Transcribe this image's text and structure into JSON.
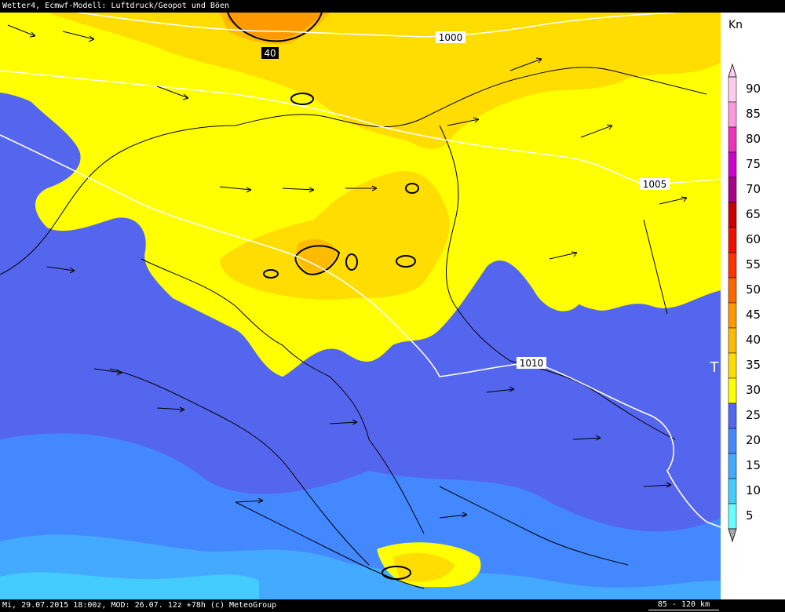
{
  "title": "Wetter4, Ecmwf-Modell: Luftdruck/Geopot und Böen",
  "footer": {
    "timestamp": "Mi, 29.07.2015 18:00z, MOD: 26.07. 12z +78h (c) MeteoGroup",
    "scale": "85 - 120 km"
  },
  "legend": {
    "unit": "Kn",
    "bins": [
      {
        "label": "90",
        "color": "#ffccee"
      },
      {
        "label": "85",
        "color": "#ff99dd"
      },
      {
        "label": "80",
        "color": "#ee33bb"
      },
      {
        "label": "75",
        "color": "#cc00cc"
      },
      {
        "label": "70",
        "color": "#aa0088"
      },
      {
        "label": "65",
        "color": "#cc0000"
      },
      {
        "label": "60",
        "color": "#ee1100"
      },
      {
        "label": "55",
        "color": "#ff3300"
      },
      {
        "label": "50",
        "color": "#ff6600"
      },
      {
        "label": "45",
        "color": "#ff9900"
      },
      {
        "label": "40",
        "color": "#ffbb00"
      },
      {
        "label": "35",
        "color": "#ffdd00"
      },
      {
        "label": "30",
        "color": "#ffff00"
      },
      {
        "label": "25",
        "color": "#5566ee"
      },
      {
        "label": "20",
        "color": "#4488ff"
      },
      {
        "label": "15",
        "color": "#44aaff"
      },
      {
        "label": "10",
        "color": "#44ccff"
      },
      {
        "label": "5",
        "color": "#66ffff"
      }
    ]
  },
  "isobars": [
    {
      "label": "1000"
    },
    {
      "label": "1005"
    },
    {
      "label": "1010"
    }
  ],
  "gust_label": "40",
  "low_marker": "T",
  "colors": {
    "yellow": "#ffff00",
    "gold": "#ffdd00",
    "orange": "#ffbb00",
    "deep_orange": "#ff9900",
    "blue": "#5566ee",
    "mid_blue": "#4488ff",
    "light_blue": "#44aaff",
    "cyan": "#44ccff"
  }
}
